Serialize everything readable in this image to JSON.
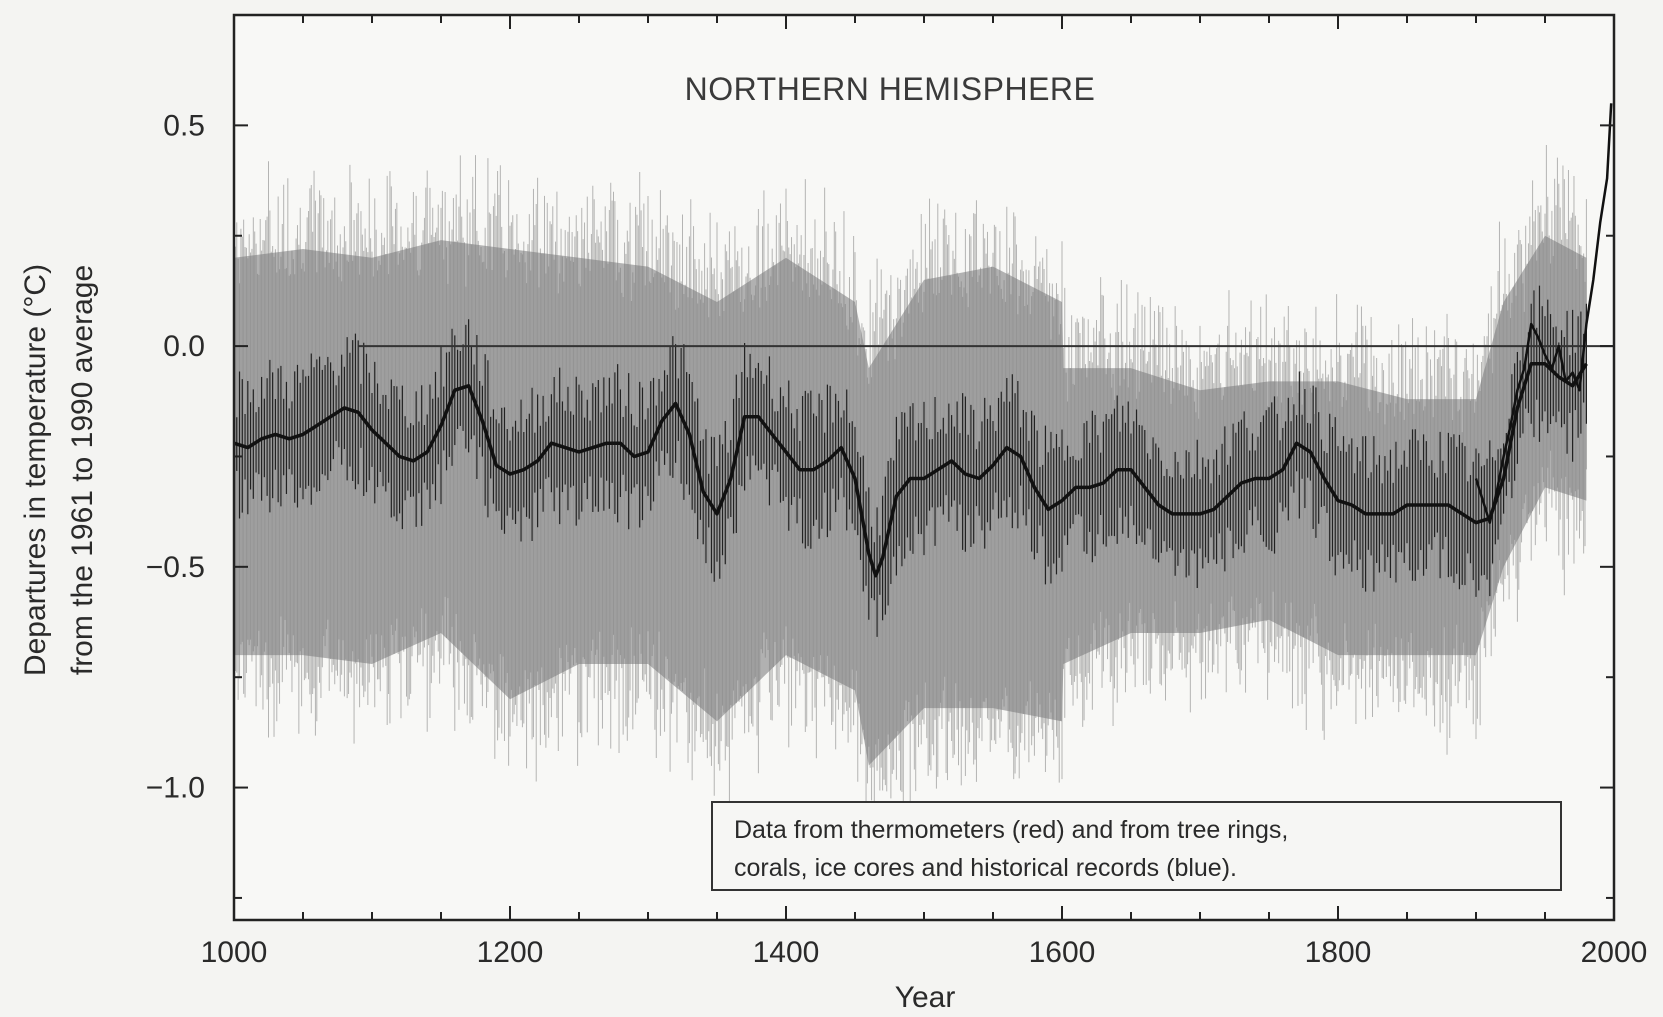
{
  "chart_data": {
    "type": "line",
    "title": "NORTHERN HEMISPHERE",
    "xlabel": "Year",
    "ylabel": "Departures in temperature (°C)",
    "ylabel2": "from the 1961 to 1990 average",
    "xlim": [
      1000,
      2000
    ],
    "ylim": [
      -1.3,
      0.75
    ],
    "xticks": [
      1000,
      1200,
      1400,
      1600,
      1800,
      2000
    ],
    "yticks": [
      0.5,
      0.0,
      -0.5,
      -1.0
    ],
    "ytick_labels": [
      "0.5",
      "0.0",
      "−0.5",
      "−1.0"
    ],
    "xtick_labels": [
      "1000",
      "1200",
      "1400",
      "1600",
      "1800",
      "2000"
    ],
    "grid": false,
    "annotation": {
      "line1": "Data from thermometers (red) and from tree rings,",
      "line2": "corals, ice cores and historical records (blue)."
    },
    "series": [
      {
        "name": "",
        "role": "smoothed reconstruction",
        "x": [
          1000,
          1010,
          1020,
          1030,
          1040,
          1050,
          1060,
          1070,
          1080,
          1090,
          1100,
          1110,
          1120,
          1130,
          1140,
          1150,
          1160,
          1170,
          1180,
          1190,
          1200,
          1210,
          1220,
          1230,
          1240,
          1250,
          1260,
          1270,
          1280,
          1290,
          1300,
          1310,
          1320,
          1330,
          1340,
          1350,
          1360,
          1370,
          1380,
          1390,
          1400,
          1410,
          1420,
          1430,
          1440,
          1450,
          1460,
          1465,
          1470,
          1480,
          1490,
          1500,
          1510,
          1520,
          1530,
          1540,
          1550,
          1560,
          1570,
          1580,
          1590,
          1600,
          1610,
          1620,
          1630,
          1640,
          1650,
          1660,
          1670,
          1680,
          1690,
          1700,
          1710,
          1720,
          1730,
          1740,
          1750,
          1760,
          1770,
          1780,
          1790,
          1800,
          1810,
          1820,
          1830,
          1840,
          1850,
          1860,
          1870,
          1880,
          1890,
          1900,
          1910,
          1920,
          1930,
          1940,
          1950,
          1960,
          1970,
          1980
        ],
        "values": [
          -0.22,
          -0.23,
          -0.21,
          -0.2,
          -0.21,
          -0.2,
          -0.18,
          -0.16,
          -0.14,
          -0.15,
          -0.19,
          -0.22,
          -0.25,
          -0.26,
          -0.24,
          -0.18,
          -0.1,
          -0.09,
          -0.17,
          -0.27,
          -0.29,
          -0.28,
          -0.26,
          -0.22,
          -0.23,
          -0.24,
          -0.23,
          -0.22,
          -0.22,
          -0.25,
          -0.24,
          -0.17,
          -0.13,
          -0.2,
          -0.33,
          -0.38,
          -0.3,
          -0.16,
          -0.16,
          -0.2,
          -0.24,
          -0.28,
          -0.28,
          -0.26,
          -0.23,
          -0.3,
          -0.47,
          -0.52,
          -0.48,
          -0.34,
          -0.3,
          -0.3,
          -0.28,
          -0.26,
          -0.29,
          -0.3,
          -0.27,
          -0.23,
          -0.25,
          -0.32,
          -0.37,
          -0.35,
          -0.32,
          -0.32,
          -0.31,
          -0.28,
          -0.28,
          -0.32,
          -0.36,
          -0.38,
          -0.38,
          -0.38,
          -0.37,
          -0.34,
          -0.31,
          -0.3,
          -0.3,
          -0.28,
          -0.22,
          -0.24,
          -0.3,
          -0.35,
          -0.36,
          -0.38,
          -0.38,
          -0.38,
          -0.36,
          -0.36,
          -0.36,
          -0.36,
          -0.38,
          -0.4,
          -0.39,
          -0.3,
          -0.14,
          -0.04,
          -0.04,
          -0.07,
          -0.09,
          -0.04
        ]
      },
      {
        "name": "",
        "role": "thermometer record",
        "x": [
          1900,
          1905,
          1910,
          1915,
          1920,
          1925,
          1930,
          1935,
          1940,
          1945,
          1950,
          1955,
          1960,
          1965,
          1970,
          1975,
          1980,
          1985,
          1990,
          1995,
          1998
        ],
        "values": [
          -0.3,
          -0.35,
          -0.4,
          -0.33,
          -0.25,
          -0.18,
          -0.1,
          -0.05,
          0.05,
          0.02,
          -0.02,
          -0.05,
          0.0,
          -0.08,
          -0.06,
          -0.1,
          0.05,
          0.15,
          0.28,
          0.38,
          0.55
        ]
      },
      {
        "name": "",
        "role": "uncertainty range upper",
        "x": [
          1000,
          1050,
          1100,
          1150,
          1200,
          1250,
          1300,
          1350,
          1400,
          1450,
          1460,
          1500,
          1550,
          1600,
          1601,
          1650,
          1700,
          1750,
          1800,
          1850,
          1900,
          1920,
          1950,
          1980
        ],
        "values": [
          0.2,
          0.22,
          0.2,
          0.24,
          0.22,
          0.2,
          0.18,
          0.1,
          0.2,
          0.1,
          -0.05,
          0.15,
          0.18,
          0.1,
          -0.05,
          -0.05,
          -0.1,
          -0.08,
          -0.08,
          -0.12,
          -0.12,
          0.1,
          0.25,
          0.2
        ]
      },
      {
        "name": "",
        "role": "uncertainty range lower",
        "x": [
          1000,
          1050,
          1100,
          1150,
          1200,
          1250,
          1300,
          1350,
          1400,
          1450,
          1460,
          1500,
          1550,
          1600,
          1601,
          1650,
          1700,
          1750,
          1800,
          1850,
          1900,
          1920,
          1950,
          1980
        ],
        "values": [
          -0.7,
          -0.7,
          -0.72,
          -0.65,
          -0.8,
          -0.72,
          -0.72,
          -0.85,
          -0.7,
          -0.78,
          -0.95,
          -0.82,
          -0.82,
          -0.85,
          -0.72,
          -0.65,
          -0.65,
          -0.62,
          -0.7,
          -0.7,
          -0.7,
          -0.5,
          -0.32,
          -0.35
        ]
      }
    ]
  }
}
